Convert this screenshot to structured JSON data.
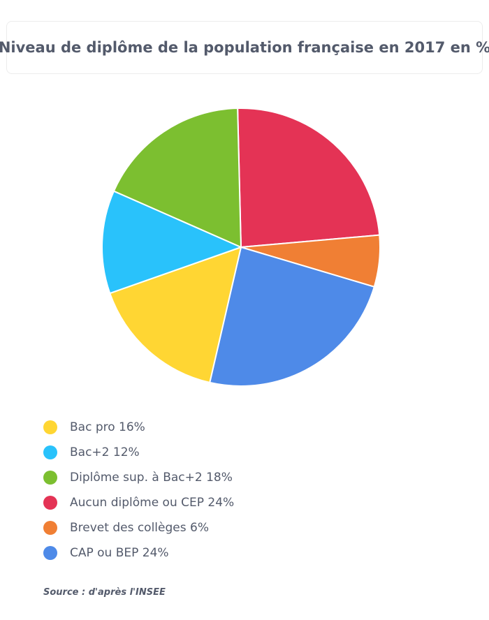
{
  "chart_data": {
    "type": "pie",
    "title": "Niveau de diplôme de la population française en 2017 en %",
    "slices": [
      {
        "label": "Aucun diplôme ou CEP 24%",
        "value": 24,
        "color": "#e43355"
      },
      {
        "label": "Brevet des collèges 6%",
        "value": 6,
        "color": "#f07f34"
      },
      {
        "label": "CAP ou BEP 24%",
        "value": 24,
        "color": "#4e8ae8"
      },
      {
        "label": "Bac pro 16%",
        "value": 16,
        "color": "#ffd633"
      },
      {
        "label": "Bac+2 12%",
        "value": 12,
        "color": "#29c2fb"
      },
      {
        "label": "Diplôme sup. à Bac+2 18%",
        "value": 18,
        "color": "#7cbf30"
      }
    ],
    "legend": [
      {
        "label": "Bac pro 16%",
        "color": "#ffd633"
      },
      {
        "label": "Bac+2 12%",
        "color": "#29c2fb"
      },
      {
        "label": "Diplôme sup. à Bac+2 18%",
        "color": "#7cbf30"
      },
      {
        "label": "Aucun diplôme ou CEP 24%",
        "color": "#e43355"
      },
      {
        "label": "Brevet des collèges 6%",
        "color": "#f07f34"
      },
      {
        "label": "CAP ou BEP 24%",
        "color": "#4e8ae8"
      }
    ],
    "legend_position": "bottom-left"
  },
  "source": "Source : d'après l'INSEE"
}
